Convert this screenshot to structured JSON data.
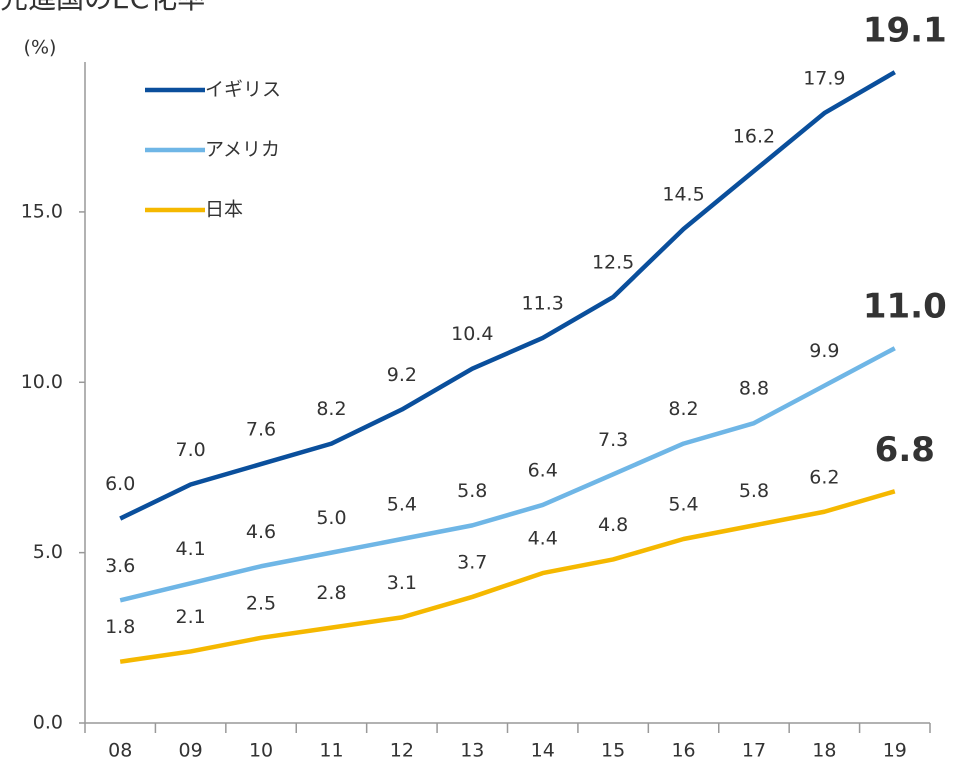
{
  "chart_data": {
    "type": "line",
    "title": "先進国のEC化率",
    "y_unit": "(%)",
    "categories": [
      "08",
      "09",
      "10",
      "11",
      "12",
      "13",
      "14",
      "15",
      "16",
      "17",
      "18",
      "19"
    ],
    "series": [
      {
        "name": "イギリス",
        "color": "#0a4f9c",
        "values": [
          6.0,
          7.0,
          7.6,
          8.2,
          9.2,
          10.4,
          11.3,
          12.5,
          14.5,
          16.2,
          17.9,
          19.1
        ],
        "value_labels": [
          "6.0",
          "7.0",
          "7.6",
          "8.2",
          "9.2",
          "10.4",
          "11.3",
          "12.5",
          "14.5",
          "16.2",
          "17.9",
          "19.1"
        ]
      },
      {
        "name": "アメリカ",
        "color": "#6fb6e6",
        "values": [
          3.6,
          4.1,
          4.6,
          5.0,
          5.4,
          5.8,
          6.4,
          7.3,
          8.2,
          8.8,
          9.9,
          11.0
        ],
        "value_labels": [
          "3.6",
          "4.1",
          "4.6",
          "5.0",
          "5.4",
          "5.8",
          "6.4",
          "7.3",
          "8.2",
          "8.8",
          "9.9",
          "11.0"
        ]
      },
      {
        "name": "日本",
        "color": "#f5b800",
        "values": [
          1.8,
          2.1,
          2.5,
          2.8,
          3.1,
          3.7,
          4.4,
          4.8,
          5.4,
          5.8,
          6.2,
          6.8
        ],
        "value_labels": [
          "1.8",
          "2.1",
          "2.5",
          "2.8",
          "3.1",
          "3.7",
          "4.4",
          "4.8",
          "5.4",
          "5.8",
          "6.2",
          "6.8"
        ]
      }
    ],
    "ylim": [
      0,
      19.4
    ],
    "yticks": [
      {
        "value": 0,
        "label": "0.0"
      },
      {
        "value": 5,
        "label": "5.0"
      },
      {
        "value": 10,
        "label": "10.0"
      },
      {
        "value": 15,
        "label": "15.0"
      }
    ],
    "legend": "top-left"
  }
}
